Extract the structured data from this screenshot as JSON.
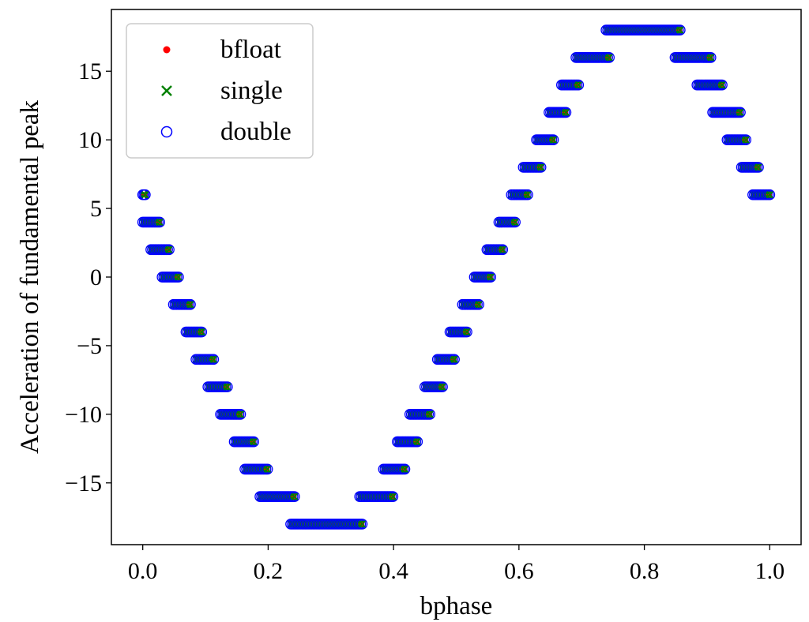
{
  "chart_data": {
    "type": "scatter",
    "title": "",
    "xlabel": "bphase",
    "ylabel": "Acceleration of fundamental peak",
    "xlim": [
      -0.05,
      1.05
    ],
    "ylim": [
      -19.5,
      19.5
    ],
    "xticks": [
      0.0,
      0.2,
      0.4,
      0.6,
      0.8,
      1.0
    ],
    "xtick_labels": [
      "0.0",
      "0.2",
      "0.4",
      "0.6",
      "0.8",
      "1.0"
    ],
    "yticks": [
      -15,
      -10,
      -5,
      0,
      5,
      10,
      15
    ],
    "ytick_labels": [
      "−15",
      "−10",
      "−5",
      "0",
      "5",
      "10",
      "15"
    ],
    "grid": false,
    "legend_position": "top-left",
    "series": [
      {
        "name": "bfloat",
        "marker": "dot",
        "color": "#ff0000"
      },
      {
        "name": "single",
        "marker": "x",
        "color": "#008000"
      },
      {
        "name": "double",
        "marker": "open-circle",
        "color": "#0000ff"
      }
    ],
    "segments": [
      {
        "x_start": 0.0,
        "x_end": 0.004,
        "y": 6
      },
      {
        "x_start": 0.0,
        "x_end": 0.027,
        "y": 4
      },
      {
        "x_start": 0.013,
        "x_end": 0.042,
        "y": 2
      },
      {
        "x_start": 0.031,
        "x_end": 0.057,
        "y": 0
      },
      {
        "x_start": 0.049,
        "x_end": 0.076,
        "y": -2
      },
      {
        "x_start": 0.069,
        "x_end": 0.094,
        "y": -4
      },
      {
        "x_start": 0.085,
        "x_end": 0.113,
        "y": -6
      },
      {
        "x_start": 0.104,
        "x_end": 0.135,
        "y": -8
      },
      {
        "x_start": 0.124,
        "x_end": 0.156,
        "y": -10
      },
      {
        "x_start": 0.146,
        "x_end": 0.177,
        "y": -12
      },
      {
        "x_start": 0.163,
        "x_end": 0.199,
        "y": -14
      },
      {
        "x_start": 0.187,
        "x_end": 0.242,
        "y": -16
      },
      {
        "x_start": 0.236,
        "x_end": 0.35,
        "y": -18
      },
      {
        "x_start": 0.346,
        "x_end": 0.399,
        "y": -16
      },
      {
        "x_start": 0.384,
        "x_end": 0.418,
        "y": -14
      },
      {
        "x_start": 0.406,
        "x_end": 0.438,
        "y": -12
      },
      {
        "x_start": 0.426,
        "x_end": 0.458,
        "y": -10
      },
      {
        "x_start": 0.45,
        "x_end": 0.478,
        "y": -8
      },
      {
        "x_start": 0.47,
        "x_end": 0.497,
        "y": -6
      },
      {
        "x_start": 0.49,
        "x_end": 0.517,
        "y": -4
      },
      {
        "x_start": 0.51,
        "x_end": 0.536,
        "y": -2
      },
      {
        "x_start": 0.529,
        "x_end": 0.555,
        "y": 0
      },
      {
        "x_start": 0.549,
        "x_end": 0.574,
        "y": 2
      },
      {
        "x_start": 0.568,
        "x_end": 0.594,
        "y": 4
      },
      {
        "x_start": 0.588,
        "x_end": 0.614,
        "y": 6
      },
      {
        "x_start": 0.607,
        "x_end": 0.635,
        "y": 8
      },
      {
        "x_start": 0.628,
        "x_end": 0.655,
        "y": 10
      },
      {
        "x_start": 0.648,
        "x_end": 0.675,
        "y": 12
      },
      {
        "x_start": 0.668,
        "x_end": 0.695,
        "y": 14
      },
      {
        "x_start": 0.691,
        "x_end": 0.744,
        "y": 16
      },
      {
        "x_start": 0.739,
        "x_end": 0.857,
        "y": 18
      },
      {
        "x_start": 0.849,
        "x_end": 0.906,
        "y": 16
      },
      {
        "x_start": 0.884,
        "x_end": 0.924,
        "y": 14
      },
      {
        "x_start": 0.909,
        "x_end": 0.953,
        "y": 12
      },
      {
        "x_start": 0.932,
        "x_end": 0.962,
        "y": 10
      },
      {
        "x_start": 0.955,
        "x_end": 0.982,
        "y": 8
      },
      {
        "x_start": 0.973,
        "x_end": 1.0,
        "y": 6
      }
    ],
    "point_spacing": 0.0025
  }
}
